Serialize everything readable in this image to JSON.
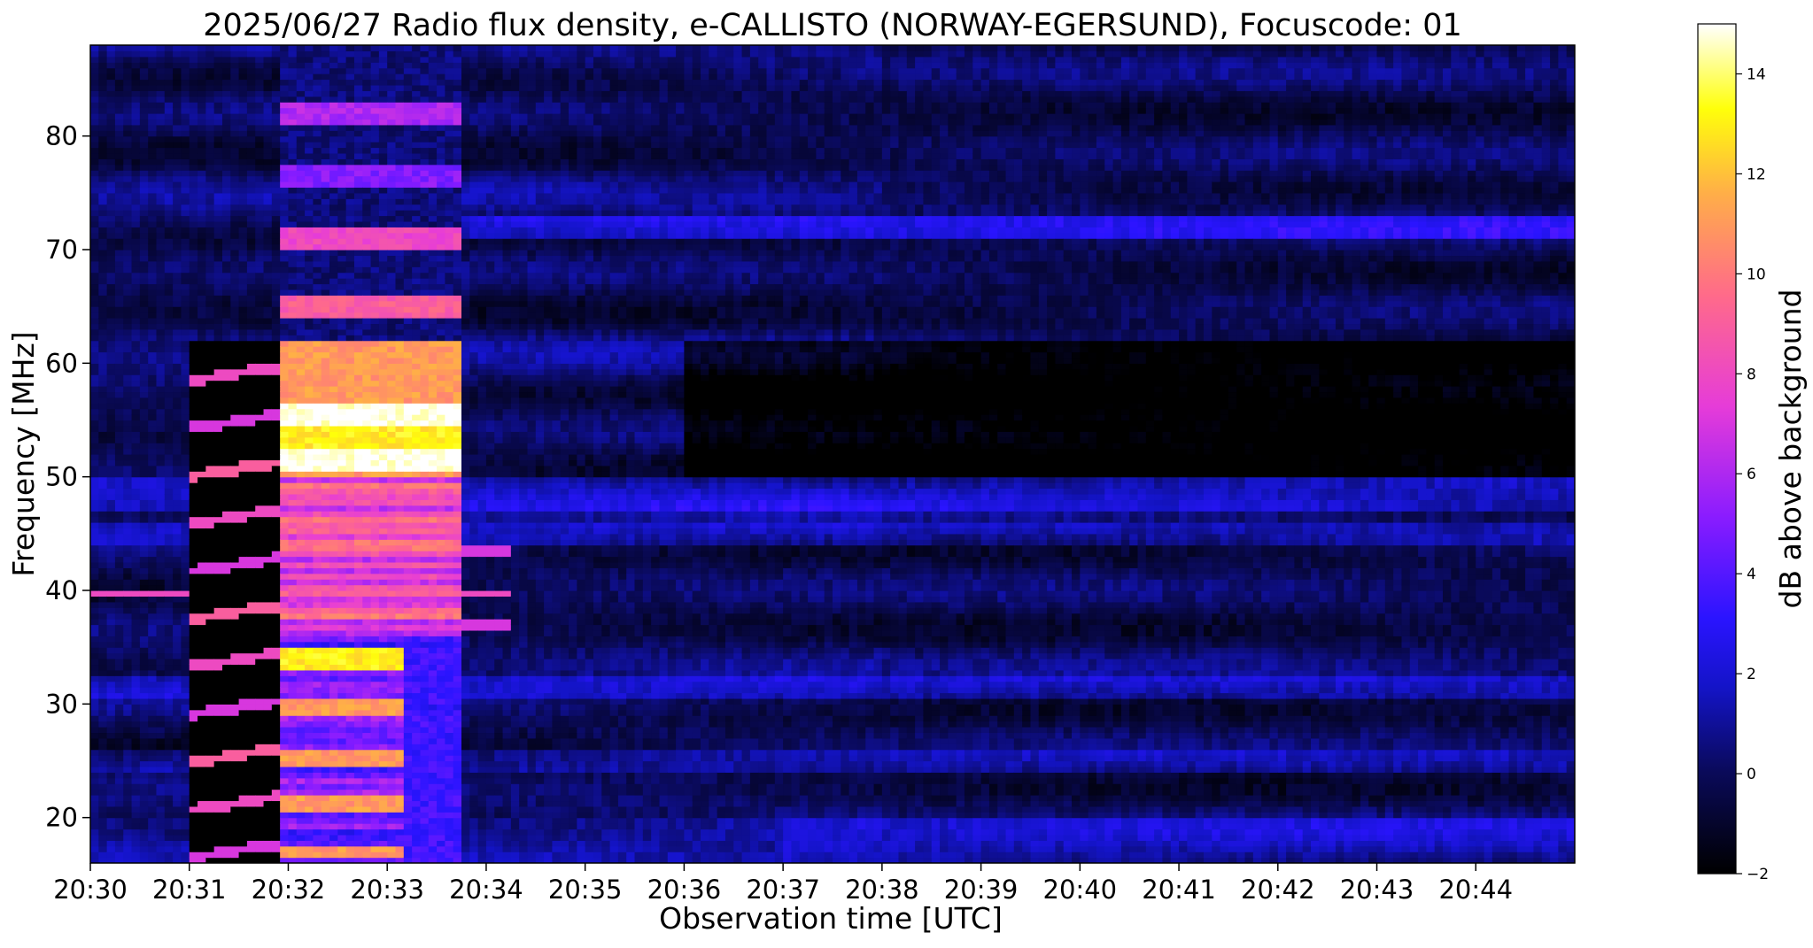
{
  "chart_data": {
    "type": "heatmap",
    "title": "2025/06/27  Radio flux density, e-CALLISTO (NORWAY-EGERSUND), Focuscode: 01",
    "xlabel": "Observation time [UTC]",
    "ylabel": "Frequency [MHz]",
    "colorbar_label": "dB above background",
    "colormap": "gnuplot2",
    "x_time_range": [
      "20:30:00",
      "20:45:00"
    ],
    "x_ticks": [
      "20:30",
      "20:31",
      "20:32",
      "20:33",
      "20:34",
      "20:35",
      "20:36",
      "20:37",
      "20:38",
      "20:39",
      "20:40",
      "20:41",
      "20:42",
      "20:43",
      "20:44"
    ],
    "ylim": [
      16,
      88
    ],
    "y_ticks": [
      20,
      30,
      40,
      50,
      60,
      70,
      80
    ],
    "clim": [
      -2,
      15
    ],
    "colorbar_ticks": [
      -2,
      0,
      2,
      4,
      6,
      8,
      10,
      12,
      14
    ],
    "grid": false,
    "features": [
      {
        "kind": "burst",
        "t_start": "20:31:55",
        "t_end": "20:33:45",
        "f_min": 16,
        "f_max": 84,
        "peak_db": 15
      },
      {
        "kind": "burst",
        "t_start": "20:31:00",
        "t_end": "20:31:55",
        "f_min": 16,
        "f_max": 62,
        "peak_db": 8
      },
      {
        "kind": "band",
        "t_start": "20:30:00",
        "t_end": "20:34:15",
        "f": 39.7,
        "level_db": 8
      },
      {
        "kind": "band",
        "t_start": "20:32:50",
        "t_end": "20:45:00",
        "f": 72,
        "level_db": 2
      }
    ]
  }
}
